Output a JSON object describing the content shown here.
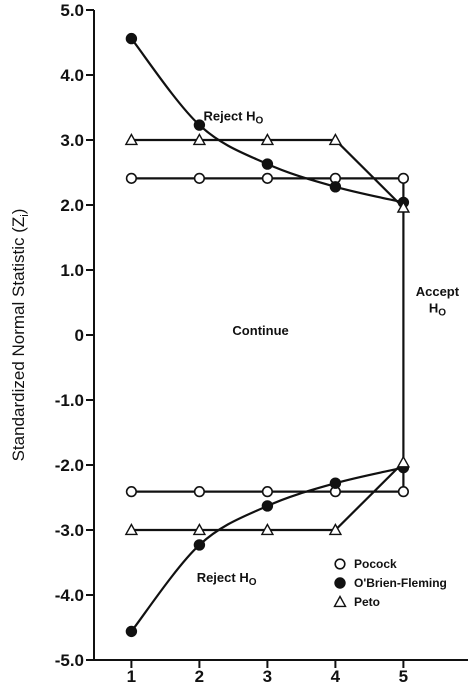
{
  "chart_data": {
    "type": "line",
    "ylabel": "Standardized Normal Statistic (Z",
    "ylabel_sub": "i",
    "ylabel_close": ")",
    "xlabel": "",
    "x_ticks": [
      1,
      2,
      3,
      4,
      5
    ],
    "y_ticks": [
      "5.0",
      "4.0",
      "3.0",
      "2.0",
      "1.0",
      "0",
      "-1.0",
      "-2.0",
      "-3.0",
      "-4.0",
      "-5.0"
    ],
    "xlim": [
      0.45,
      5.95
    ],
    "ylim": [
      -5,
      5
    ],
    "grid": false,
    "legend_position": "bottom-right",
    "series": [
      {
        "name": "Pocock",
        "marker": "open-circle",
        "x": [
          1,
          2,
          3,
          4,
          5
        ],
        "upper": [
          2.41,
          2.41,
          2.41,
          2.41,
          2.41
        ],
        "lower": [
          -2.41,
          -2.41,
          -2.41,
          -2.41,
          -2.41
        ]
      },
      {
        "name": "O'Brien-Fleming",
        "marker": "filled-circle",
        "x": [
          1,
          2,
          3,
          4,
          5
        ],
        "upper": [
          4.56,
          3.23,
          2.63,
          2.28,
          2.04
        ],
        "lower": [
          -4.56,
          -3.23,
          -2.63,
          -2.28,
          -2.04
        ]
      },
      {
        "name": "Peto",
        "marker": "open-triangle",
        "x": [
          1,
          2,
          3,
          4,
          5
        ],
        "upper": [
          3.0,
          3.0,
          3.0,
          3.0,
          1.96
        ],
        "lower": [
          -3.0,
          -3.0,
          -3.0,
          -3.0,
          -1.96
        ]
      }
    ],
    "annotations": {
      "reject_upper": {
        "text": "Reject H",
        "sub": "O",
        "x": 2.5,
        "y": 3.3
      },
      "continue": {
        "text": "Continue",
        "x": 2.9,
        "y": 0
      },
      "accept_line1": {
        "text": "Accept",
        "x": 5.5,
        "y": 0.6
      },
      "accept_line2": {
        "text": "H",
        "sub": "O",
        "x": 5.5,
        "y": 0.35
      },
      "reject_lower": {
        "text": "Reject H",
        "sub": "O",
        "x": 2.4,
        "y": -3.8
      }
    }
  }
}
